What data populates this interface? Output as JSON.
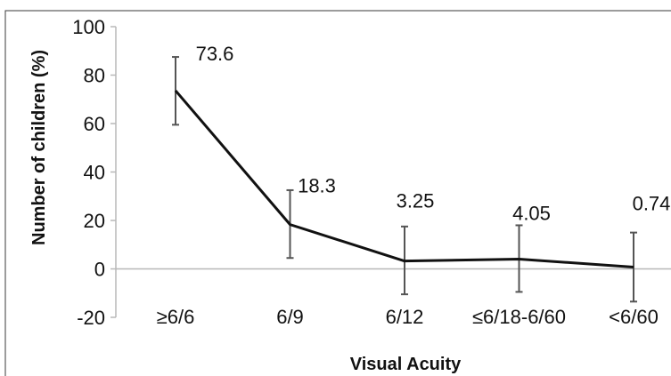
{
  "chart_data": {
    "type": "line",
    "title": "",
    "xlabel": "Visual Acuity",
    "ylabel": "Number of children (%)",
    "ylim": [
      -20,
      100
    ],
    "yticks": [
      -20,
      0,
      20,
      40,
      60,
      80,
      100
    ],
    "categories": [
      "≥6/6",
      "6/9",
      "6/12",
      "≤6/18-6/60",
      "<6/60"
    ],
    "series": [
      {
        "values": [
          73.6,
          18.3,
          3.25,
          4.05,
          0.74
        ],
        "error_low": [
          59.5,
          4.5,
          -10.5,
          -9.5,
          -13.5
        ],
        "error_high": [
          87.5,
          32.5,
          17.5,
          18.0,
          15.0
        ],
        "labels": [
          "73.6",
          "18.3",
          "3.25",
          "4.05",
          "0.74"
        ],
        "color": "#111111"
      }
    ],
    "grid": false,
    "legend": "none"
  }
}
